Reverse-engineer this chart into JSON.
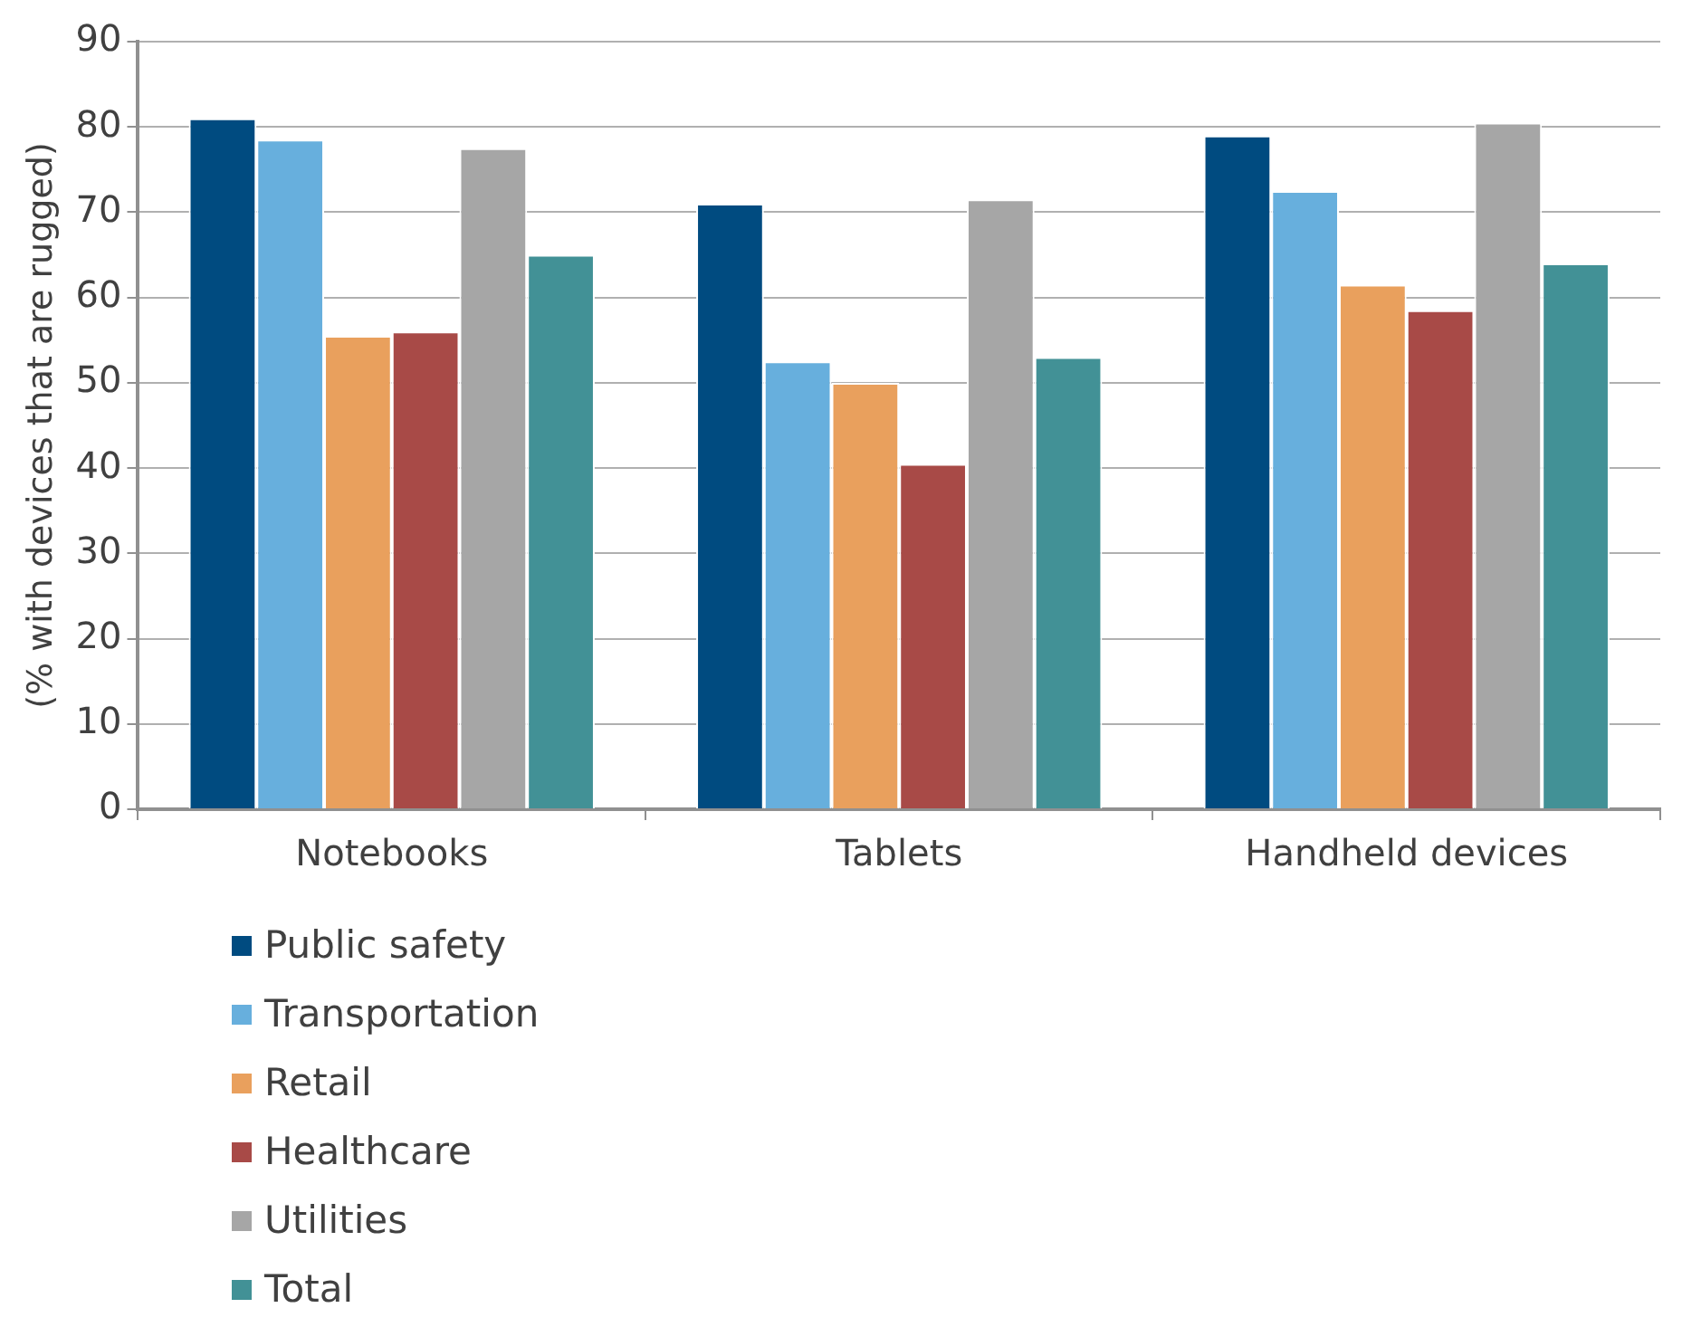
{
  "chart_data": {
    "type": "bar",
    "ylabel": "(% with devices that are rugged)",
    "categories": [
      "Notebooks",
      "Tablets",
      "Handheld devices"
    ],
    "series": [
      {
        "name": "Public safety",
        "color": "#004b80",
        "values": [
          81,
          71,
          79
        ]
      },
      {
        "name": "Transportation",
        "color": "#67afdd",
        "values": [
          78.5,
          52.5,
          72.5
        ]
      },
      {
        "name": "Retail",
        "color": "#e9a05d",
        "values": [
          55.5,
          50,
          61.5
        ]
      },
      {
        "name": "Healthcare",
        "color": "#a84a47",
        "values": [
          56,
          40.5,
          58.5
        ]
      },
      {
        "name": "Utilities",
        "color": "#a6a6a6",
        "values": [
          77.5,
          71.5,
          80.5
        ]
      },
      {
        "name": "Total",
        "color": "#429196",
        "values": [
          65,
          53,
          64
        ]
      }
    ],
    "ylim": [
      0,
      90
    ],
    "yticks": [
      0,
      10,
      20,
      30,
      40,
      50,
      60,
      70,
      80,
      90
    ],
    "grid": "y",
    "legend": "bottom left"
  }
}
